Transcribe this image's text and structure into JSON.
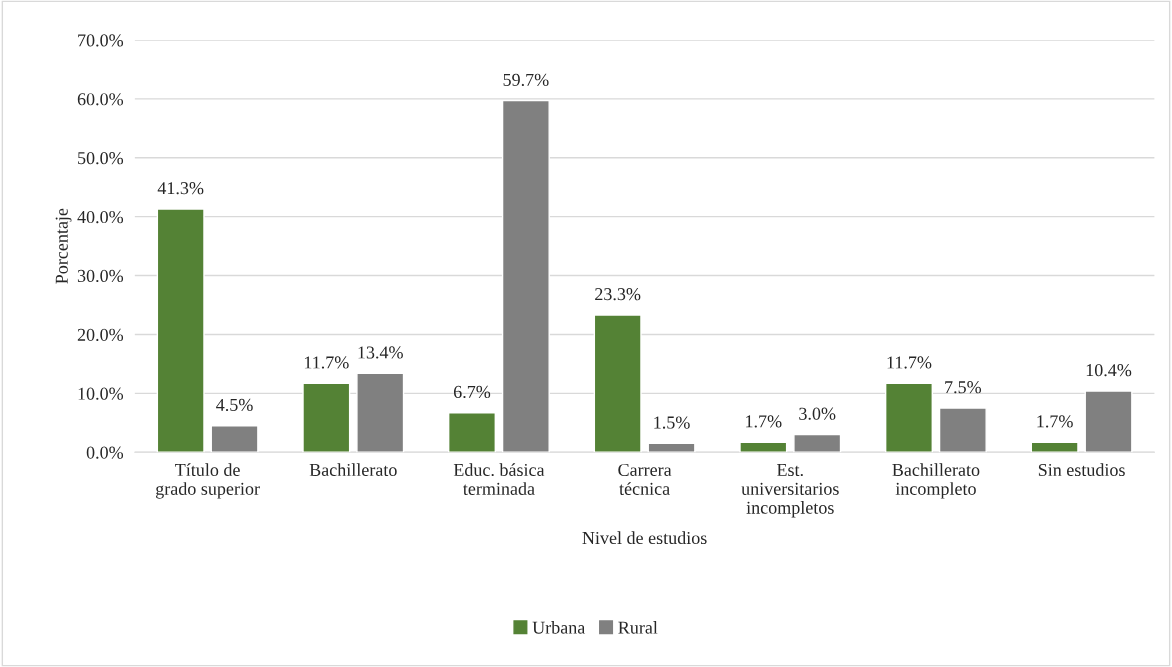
{
  "chart_data": {
    "type": "bar",
    "xlabel": "Nivel de estudios",
    "ylabel": "Porcentaje",
    "categories": [
      "Título de\ngrado superior",
      "Bachillerato",
      "Educ. básica\nterminada",
      "Carrera\ntécnica",
      "Est.\nuniversitarios\nincompletos",
      "Bachillerato\nincompleto",
      "Sin estudios"
    ],
    "series": [
      {
        "name": "Urbana",
        "color": "#548235",
        "values": [
          41.3,
          11.7,
          6.7,
          23.3,
          1.7,
          11.7,
          1.7
        ],
        "value_labels": [
          "41.3%",
          "11.7%",
          "6.7%",
          "23.3%",
          "1.7%",
          "11.7%",
          "1.7%"
        ]
      },
      {
        "name": "Rural",
        "color": "#808080",
        "values": [
          4.5,
          13.4,
          59.7,
          1.5,
          3.0,
          7.5,
          10.4
        ],
        "value_labels": [
          "4.5%",
          "13.4%",
          "59.7%",
          "1.5%",
          "3.0%",
          "7.5%",
          "10.4%"
        ]
      }
    ],
    "ylim": [
      0,
      70
    ],
    "yticks": [
      {
        "value": 0,
        "label": "0.0%"
      },
      {
        "value": 10,
        "label": "10.0%"
      },
      {
        "value": 20,
        "label": "20.0%"
      },
      {
        "value": 30,
        "label": "30.0%"
      },
      {
        "value": 40,
        "label": "40.0%"
      },
      {
        "value": 50,
        "label": "50.0%"
      },
      {
        "value": 60,
        "label": "60.0%"
      },
      {
        "value": 70,
        "label": "70.0%"
      }
    ],
    "grid": "y",
    "legend": "bottom"
  }
}
